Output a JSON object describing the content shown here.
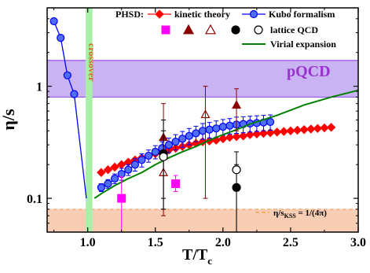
{
  "chart_data": {
    "type": "scatter",
    "xlabel": "T/T",
    "xlabel_sub": "c",
    "ylabel": "η/s",
    "xlim": [
      0.7,
      3.0
    ],
    "ylim": [
      0.05,
      5.0
    ],
    "y_scale": "log",
    "x_ticks": [
      1.0,
      1.5,
      2.0,
      2.5,
      3.0
    ],
    "x_tick_labels": [
      "1.0",
      "1.5",
      "2.0",
      "2.5",
      "3.0"
    ],
    "y_ticks": [
      0.1,
      1
    ],
    "y_tick_labels": [
      "0.1",
      "1"
    ],
    "legend_title": "PHSD:",
    "bands": [
      {
        "name": "pQCD",
        "y_range": [
          0.8,
          1.7
        ],
        "color": "#c9b3f2",
        "edge_color": "#9b59e8",
        "label_color": "#9932cc"
      },
      {
        "name": "η/s",
        "name_sub": "KSS",
        "name_suffix": " = 1/(4π)",
        "y_range": [
          0.05,
          0.08
        ],
        "color": "#f7cdb3",
        "edge_color": "#f4a460",
        "label_color": "#000000"
      }
    ],
    "crossover": {
      "label": "crossover",
      "x_range": [
        0.985,
        1.035
      ],
      "color": "#a8f0a8",
      "label_color": "#d2691e"
    },
    "series": [
      {
        "name": "kinetic theory",
        "color": "#ff0000",
        "marker": "diamond",
        "x": [
          1.1,
          1.15,
          1.2,
          1.25,
          1.3,
          1.35,
          1.4,
          1.45,
          1.5,
          1.55,
          1.6,
          1.65,
          1.7,
          1.75,
          1.8,
          1.85,
          1.9,
          1.95,
          2.0,
          2.05,
          2.1,
          2.15,
          2.2,
          2.25,
          2.3,
          2.35,
          2.4,
          2.45,
          2.5,
          2.55,
          2.6,
          2.65,
          2.7,
          2.75,
          2.8
        ],
        "y": [
          0.17,
          0.18,
          0.19,
          0.2,
          0.21,
          0.22,
          0.23,
          0.24,
          0.25,
          0.26,
          0.27,
          0.28,
          0.29,
          0.3,
          0.31,
          0.32,
          0.325,
          0.33,
          0.34,
          0.35,
          0.355,
          0.36,
          0.37,
          0.375,
          0.38,
          0.385,
          0.39,
          0.395,
          0.4,
          0.405,
          0.41,
          0.415,
          0.42,
          0.425,
          0.43
        ]
      },
      {
        "name": "Kubo formalism",
        "color": "#0000ff",
        "marker": "circle",
        "x": [
          0.75,
          0.8,
          0.85,
          0.9,
          1.1,
          1.15,
          1.2,
          1.25,
          1.3,
          1.35,
          1.4,
          1.45,
          1.5,
          1.55,
          1.6,
          1.65,
          1.7,
          1.75,
          1.8,
          1.85,
          1.9,
          1.95,
          2.0,
          2.05,
          2.1,
          2.15,
          2.2,
          2.25,
          2.3,
          2.35
        ],
        "y": [
          3.8,
          2.7,
          1.25,
          0.85,
          0.125,
          0.135,
          0.15,
          0.165,
          0.18,
          0.2,
          0.22,
          0.24,
          0.26,
          0.28,
          0.3,
          0.32,
          0.34,
          0.36,
          0.38,
          0.4,
          0.41,
          0.42,
          0.435,
          0.445,
          0.455,
          0.46,
          0.465,
          0.47,
          0.475,
          0.48
        ],
        "err": [
          0.0,
          0.0,
          0.0,
          0.0,
          0.01,
          0.012,
          0.015,
          0.02,
          0.02,
          0.025,
          0.03,
          0.03,
          0.035,
          0.04,
          0.045,
          0.05,
          0.055,
          0.06,
          0.06,
          0.065,
          0.065,
          0.07,
          0.07,
          0.07,
          0.075,
          0.075,
          0.075,
          0.075,
          0.075,
          0.075
        ]
      },
      {
        "name": "Virial expansion",
        "color": "#008000",
        "marker": "line",
        "x": [
          1.05,
          1.1,
          1.2,
          1.3,
          1.4,
          1.5,
          1.6,
          1.7,
          1.8,
          1.9,
          2.0,
          2.1,
          2.2,
          2.4,
          2.6,
          2.8,
          3.0
        ],
        "y": [
          0.1,
          0.11,
          0.13,
          0.15,
          0.17,
          0.2,
          0.23,
          0.26,
          0.29,
          0.33,
          0.37,
          0.41,
          0.46,
          0.55,
          0.68,
          0.8,
          0.92
        ]
      }
    ],
    "lattice": {
      "name": "lattice QCD",
      "groups": [
        {
          "marker": "square",
          "fill": "#ff00ff",
          "stroke": "#ff00ff",
          "points": [
            {
              "x": 1.25,
              "y": 0.1,
              "lo": 0.045,
              "hi": 0.155
            },
            {
              "x": 1.65,
              "y": 0.135,
              "lo": 0.115,
              "hi": 0.16
            }
          ]
        },
        {
          "marker": "triangle",
          "fill": "#8b0000",
          "stroke": "#8b0000",
          "points": [
            {
              "x": 1.56,
              "y": 0.35,
              "lo": 0.08,
              "hi": 0.7
            },
            {
              "x": 2.1,
              "y": 0.68,
              "lo": 0.4,
              "hi": 0.95
            }
          ]
        },
        {
          "marker": "triangle",
          "fill": "none",
          "stroke": "#8b0000",
          "points": [
            {
              "x": 1.56,
              "y": 0.17,
              "lo": 0.07,
              "hi": 0.25
            },
            {
              "x": 1.87,
              "y": 0.56,
              "lo": 0.1,
              "hi": 1.0
            }
          ]
        },
        {
          "marker": "circle",
          "fill": "#000000",
          "stroke": "#000000",
          "points": [
            {
              "x": 1.56,
              "y": 0.25,
              "lo": 0.08,
              "hi": 0.5
            },
            {
              "x": 2.1,
              "y": 0.125,
              "lo": 0.05,
              "hi": 0.2
            }
          ]
        },
        {
          "marker": "circle",
          "fill": "#ffffff",
          "stroke": "#000000",
          "points": [
            {
              "x": 1.56,
              "y": 0.235,
              "lo": 0.1,
              "hi": 0.4
            },
            {
              "x": 2.1,
              "y": 0.18,
              "lo": 0.05,
              "hi": 0.26
            }
          ]
        }
      ]
    },
    "grid": false,
    "legend_position": "top-center"
  }
}
